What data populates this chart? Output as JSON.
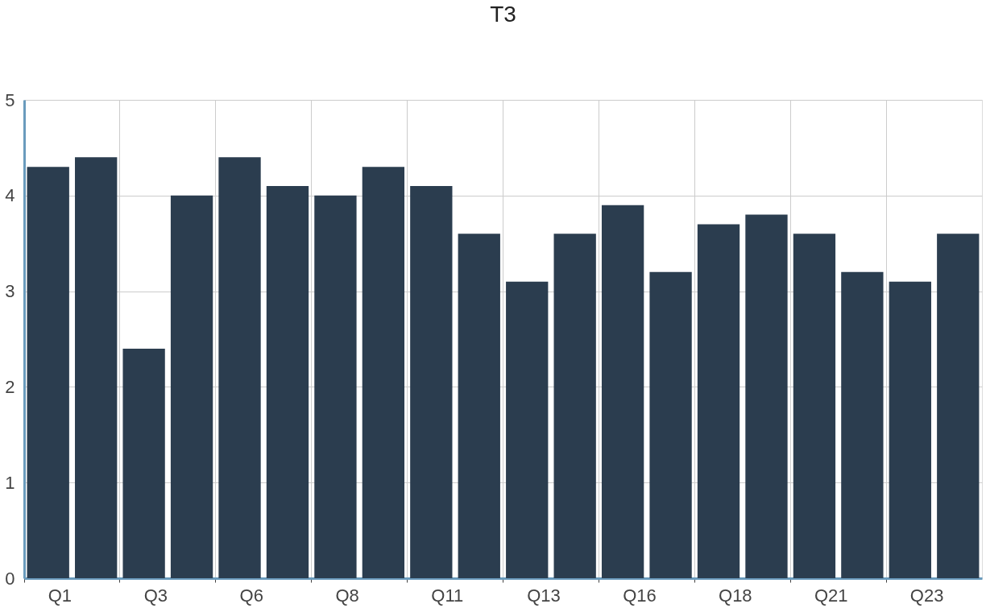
{
  "chart_data": {
    "type": "bar",
    "title": "T3",
    "categories": [
      "Q1",
      null,
      "Q3",
      null,
      "Q6",
      null,
      "Q8",
      null,
      "Q11",
      null,
      "Q13",
      null,
      "Q16",
      null,
      "Q18",
      null,
      "Q21",
      null,
      "Q23",
      null
    ],
    "values": [
      4.3,
      4.4,
      2.4,
      4.0,
      4.4,
      4.1,
      4.0,
      4.3,
      4.1,
      3.6,
      3.1,
      3.6,
      3.9,
      3.2,
      3.7,
      3.8,
      3.6,
      3.2,
      3.1,
      3.6
    ],
    "color": "#2b3d4f",
    "ylim": [
      0,
      5
    ],
    "yticks": [
      0,
      1,
      2,
      3,
      4,
      5
    ],
    "grid": true
  }
}
